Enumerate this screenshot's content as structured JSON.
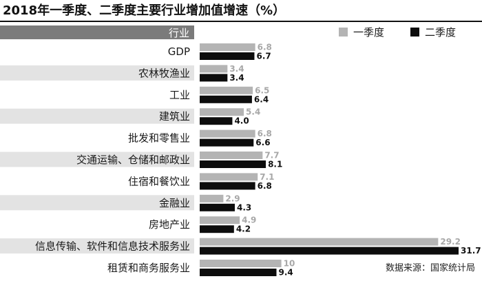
{
  "chart_data": {
    "type": "bar",
    "orientation": "horizontal",
    "title": "2018年一季度、二季度主要行业增加值增速（%）",
    "category_header": "行业",
    "categories": [
      "GDP",
      "农林牧渔业",
      "工业",
      "建筑业",
      "批发和零售业",
      "交通运输、仓储和邮政业",
      "住宿和餐饮业",
      "金融业",
      "房地产业",
      "信息传输、软件和信息技术服务业",
      "租赁和商务服务业"
    ],
    "series": [
      {
        "name": "一季度",
        "color": "#b4b4b4",
        "values": [
          6.8,
          3.4,
          6.5,
          5.4,
          6.8,
          7.7,
          7.1,
          2.9,
          4.9,
          29.2,
          10
        ],
        "labels": [
          "6.8",
          "3.4",
          "6.5",
          "5.4",
          "6.8",
          "7.7",
          "7.1",
          "2.9",
          "4.9",
          "29.2",
          "10"
        ]
      },
      {
        "name": "二季度",
        "color": "#0d0d0d",
        "values": [
          6.7,
          3.4,
          6.4,
          4.0,
          6.6,
          8.1,
          6.8,
          4.3,
          4.2,
          31.7,
          9.4
        ],
        "labels": [
          "6.7",
          "3.4",
          "6.4",
          "4.0",
          "6.6",
          "8.1",
          "6.8",
          "4.3",
          "4.2",
          "31.7",
          "9.4"
        ]
      }
    ],
    "xlim": [
      0,
      31.7
    ],
    "legend_position": "top-right",
    "source": "数据来源：国家统计局",
    "grid": false
  }
}
